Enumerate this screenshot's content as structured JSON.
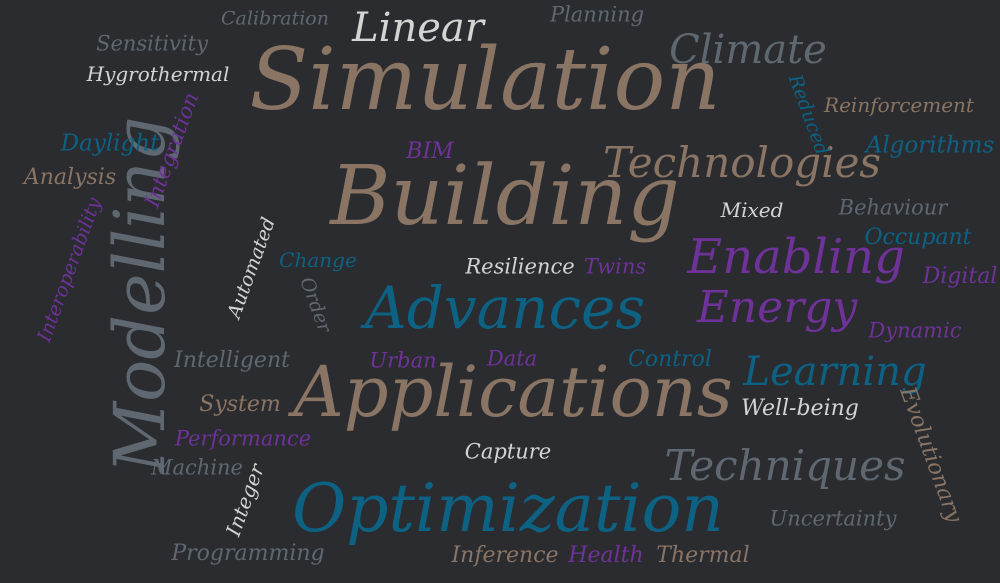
{
  "words": {
    "simulation": "Simulation",
    "building": "Building",
    "modelling": "Modelling",
    "applications": "Applications",
    "optimization": "Optimization",
    "advances": "Advances",
    "techniques": "Techniques",
    "technologies": "Technologies",
    "enabling": "Enabling",
    "energy": "Energy",
    "learning": "Learning",
    "climate": "Climate",
    "linear": "Linear",
    "calibration": "Calibration",
    "planning": "Planning",
    "sensitivity": "Sensitivity",
    "hygrothermal": "Hygrothermal",
    "reinforcement": "Reinforcement",
    "reduced": "Reduced",
    "algorithms": "Algorithms",
    "daylight": "Daylight",
    "integration": "Integration",
    "bim": "BIM",
    "analysis": "Analysis",
    "mixed": "Mixed",
    "behaviour": "Behaviour",
    "occupant": "Occupant",
    "interoperability": "Interoperability",
    "automated": "Automated",
    "change": "Change",
    "resilience": "Resilience",
    "twins": "Twins",
    "digital": "Digital",
    "order": "Order",
    "dynamic": "Dynamic",
    "intelligent": "Intelligent",
    "urban": "Urban",
    "data": "Data",
    "control": "Control",
    "system": "System",
    "well_being": "Well-being",
    "evolutionary": "Evolutionary",
    "performance": "Performance",
    "capture": "Capture",
    "machine": "Machine",
    "integer": "Integer",
    "uncertainty": "Uncertainty",
    "programming": "Programming",
    "inference": "Inference",
    "health": "Health",
    "thermal": "Thermal"
  },
  "colors": {
    "background": "#2a2c30",
    "brown": "#8a7463",
    "gray": "#5f6870",
    "blue": "#0d6283",
    "purple": "#6f3298",
    "light": "#d4d4d4"
  }
}
